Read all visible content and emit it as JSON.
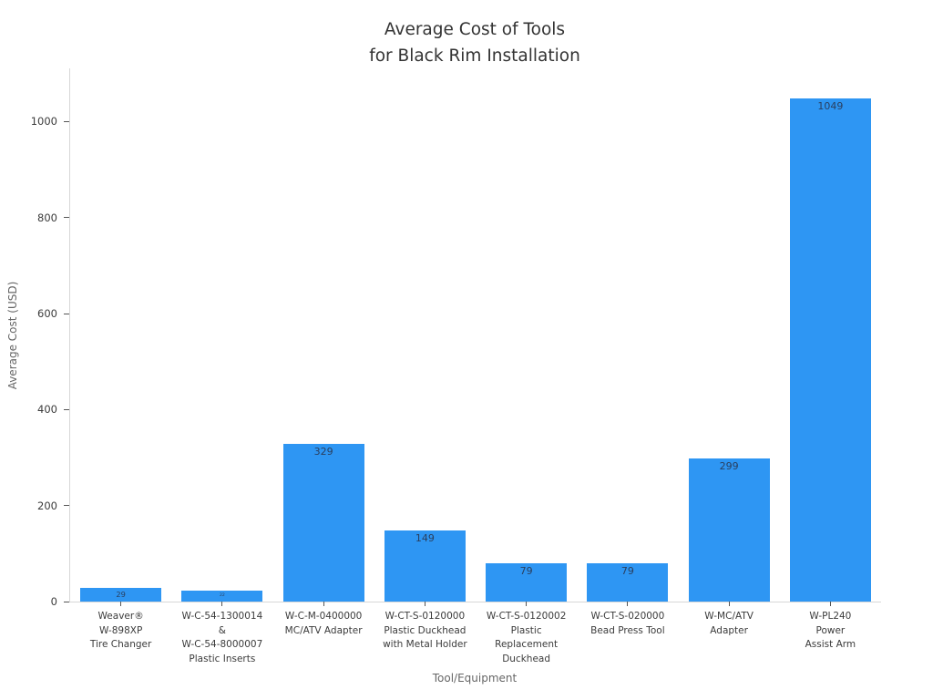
{
  "chart_data": {
    "type": "bar",
    "title": "Average Cost of Tools\nfor Black Rim Installation",
    "xlabel": "Tool/Equipment",
    "ylabel": "Average Cost (USD)",
    "categories": [
      [
        "Weaver®",
        "W-898XP",
        "Tire Changer"
      ],
      [
        "W-C-54-1300014",
        "&",
        "W-C-54-8000007",
        "Plastic Inserts"
      ],
      [
        "W-C-M-0400000",
        "MC/ATV Adapter"
      ],
      [
        "W-CT-S-0120000",
        "Plastic Duckhead",
        "with Metal Holder"
      ],
      [
        "W-CT-S-0120002",
        "Plastic",
        "Replacement",
        "Duckhead"
      ],
      [
        "W-CT-S-020000",
        "Bead Press Tool"
      ],
      [
        "W-MC/ATV",
        "Adapter"
      ],
      [
        "W-PL240",
        "Power Assist Arm"
      ]
    ],
    "values": [
      29,
      22,
      329,
      149,
      79,
      79,
      299,
      1049
    ],
    "bar_labels": [
      "29",
      "22",
      "329",
      "149",
      "79",
      "79",
      "299",
      "1049"
    ],
    "ylim": [
      0,
      1111
    ],
    "yticks": [
      0,
      200,
      400,
      600,
      800,
      1000
    ],
    "grid": false,
    "legend": null,
    "colors": {
      "bar": "#2e96f3",
      "bar_label": "#2a3f5f",
      "axis_line": "#d7d7d7",
      "tick": "#555555",
      "tick_label": "#3b3b3b",
      "axis_title": "#666666",
      "title": "#333333"
    }
  }
}
